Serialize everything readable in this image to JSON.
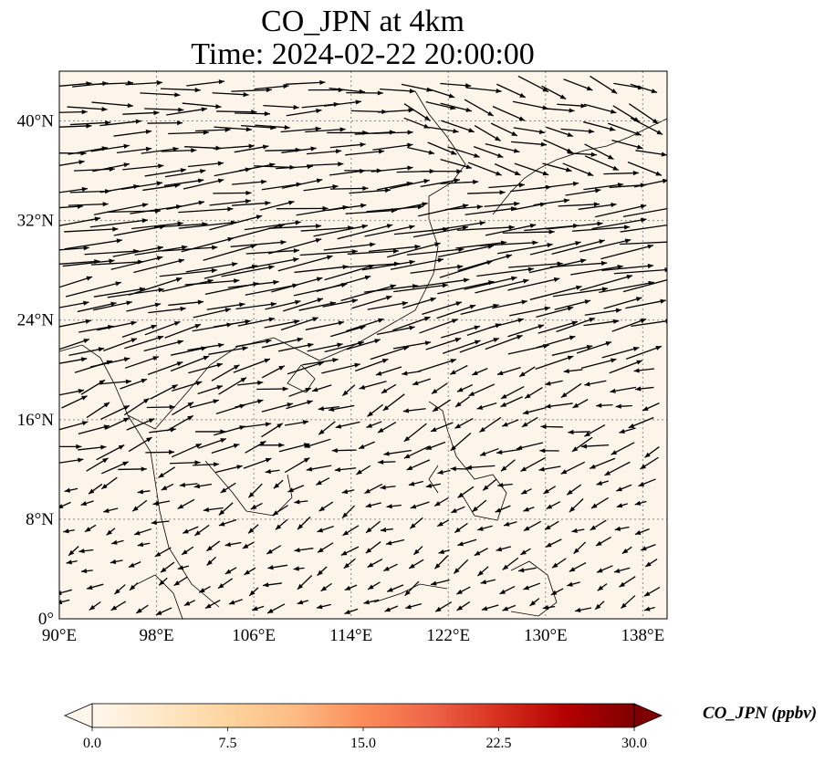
{
  "title": {
    "line1": "CO_JPN at 4km",
    "line2": "Time: 2024-02-22 20:00:00"
  },
  "map": {
    "projection": "PlateCarree",
    "lon_range": [
      90,
      140
    ],
    "lat_range": [
      0,
      44
    ],
    "background_color": "#fdf5e9",
    "gridlines": "dotted",
    "lat_ticks": [
      "0°",
      "8°N",
      "16°N",
      "24°N",
      "32°N",
      "40°N"
    ],
    "lat_values": [
      0,
      8,
      16,
      24,
      32,
      40
    ],
    "lon_ticks": [
      "90°E",
      "98°E",
      "106°E",
      "114°E",
      "122°E",
      "130°E",
      "138°E"
    ],
    "lon_values": [
      90,
      98,
      106,
      114,
      122,
      130,
      138
    ],
    "vectors": "wind",
    "vector_color": "#000000"
  },
  "colorbar": {
    "label": "CO_JPN (ppbv)",
    "ticks": [
      "0.0",
      "7.5",
      "15.0",
      "22.5",
      "30.0"
    ],
    "tick_values": [
      0,
      7.5,
      15,
      22.5,
      30
    ],
    "colormap": "OrRd",
    "colors": [
      "#fff7ec",
      "#fee8c8",
      "#fdd49e",
      "#fdbb84",
      "#fc8d59",
      "#ef6548",
      "#d7301f",
      "#b30000",
      "#7f0000"
    ],
    "extend": "both"
  }
}
